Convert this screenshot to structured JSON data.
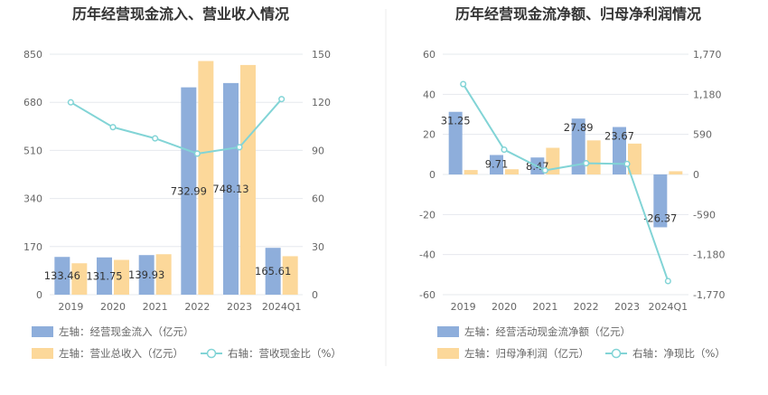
{
  "chart_data": [
    {
      "type": "bar",
      "title": "历年经营现金流入、营业收入情况",
      "categories": [
        "2019",
        "2020",
        "2021",
        "2022",
        "2023",
        "2024Q1"
      ],
      "left_axis": {
        "ticks": [
          "0",
          "170",
          "340",
          "510",
          "680",
          "850"
        ],
        "ylim": [
          0,
          850
        ]
      },
      "right_axis": {
        "ticks": [
          "0",
          "30",
          "60",
          "90",
          "120",
          "150"
        ],
        "ylim": [
          0,
          150
        ]
      },
      "series": [
        {
          "name": "左轴：经营现金流入（亿元）",
          "kind": "bar",
          "axis": "left",
          "color": "#8eaedb",
          "values": [
            133.46,
            131.75,
            139.93,
            732.99,
            748.13,
            165.61
          ],
          "labels": [
            "133.46",
            "131.75",
            "139.93",
            "732.99",
            "748.13",
            "165.61"
          ]
        },
        {
          "name": "左轴：营业总收入（亿元）",
          "kind": "bar",
          "axis": "left",
          "color": "#fcd89a",
          "values": [
            111,
            123,
            143,
            826,
            812,
            136
          ]
        },
        {
          "name": "右轴：营收现金比（%）",
          "kind": "line",
          "axis": "right",
          "color": "#82d4d6",
          "values": [
            120,
            104.5,
            97.5,
            88,
            92,
            122
          ]
        }
      ]
    },
    {
      "type": "bar",
      "title": "历年经营现金流净额、归母净利润情况",
      "categories": [
        "2019",
        "2020",
        "2021",
        "2022",
        "2023",
        "2024Q1"
      ],
      "left_axis": {
        "ticks": [
          "-60",
          "-40",
          "-20",
          "0",
          "20",
          "40",
          "60"
        ],
        "ylim": [
          -60,
          60
        ]
      },
      "right_axis": {
        "ticks": [
          "-1,770",
          "-1,180",
          "-590",
          "0",
          "590",
          "1,180",
          "1,770"
        ],
        "ylim": [
          -1770,
          1770
        ]
      },
      "series": [
        {
          "name": "左轴：经营活动现金流净额（亿元）",
          "kind": "bar",
          "axis": "left",
          "color": "#8eaedb",
          "values": [
            31.25,
            9.71,
            8.47,
            27.89,
            23.67,
            -26.37
          ],
          "labels": [
            "31.25",
            "9.71",
            "8.47",
            "27.89",
            "23.67",
            "-26.37"
          ]
        },
        {
          "name": "左轴：归母净利润（亿元）",
          "kind": "bar",
          "axis": "left",
          "color": "#fcd89a",
          "values": [
            2.2,
            2.6,
            13.3,
            17.0,
            15.4,
            1.6
          ]
        },
        {
          "name": "右轴：净现比（%）",
          "kind": "line",
          "axis": "right",
          "color": "#82d4d6",
          "values": [
            1330,
            365,
            60,
            165,
            155,
            -1570
          ]
        }
      ]
    }
  ]
}
